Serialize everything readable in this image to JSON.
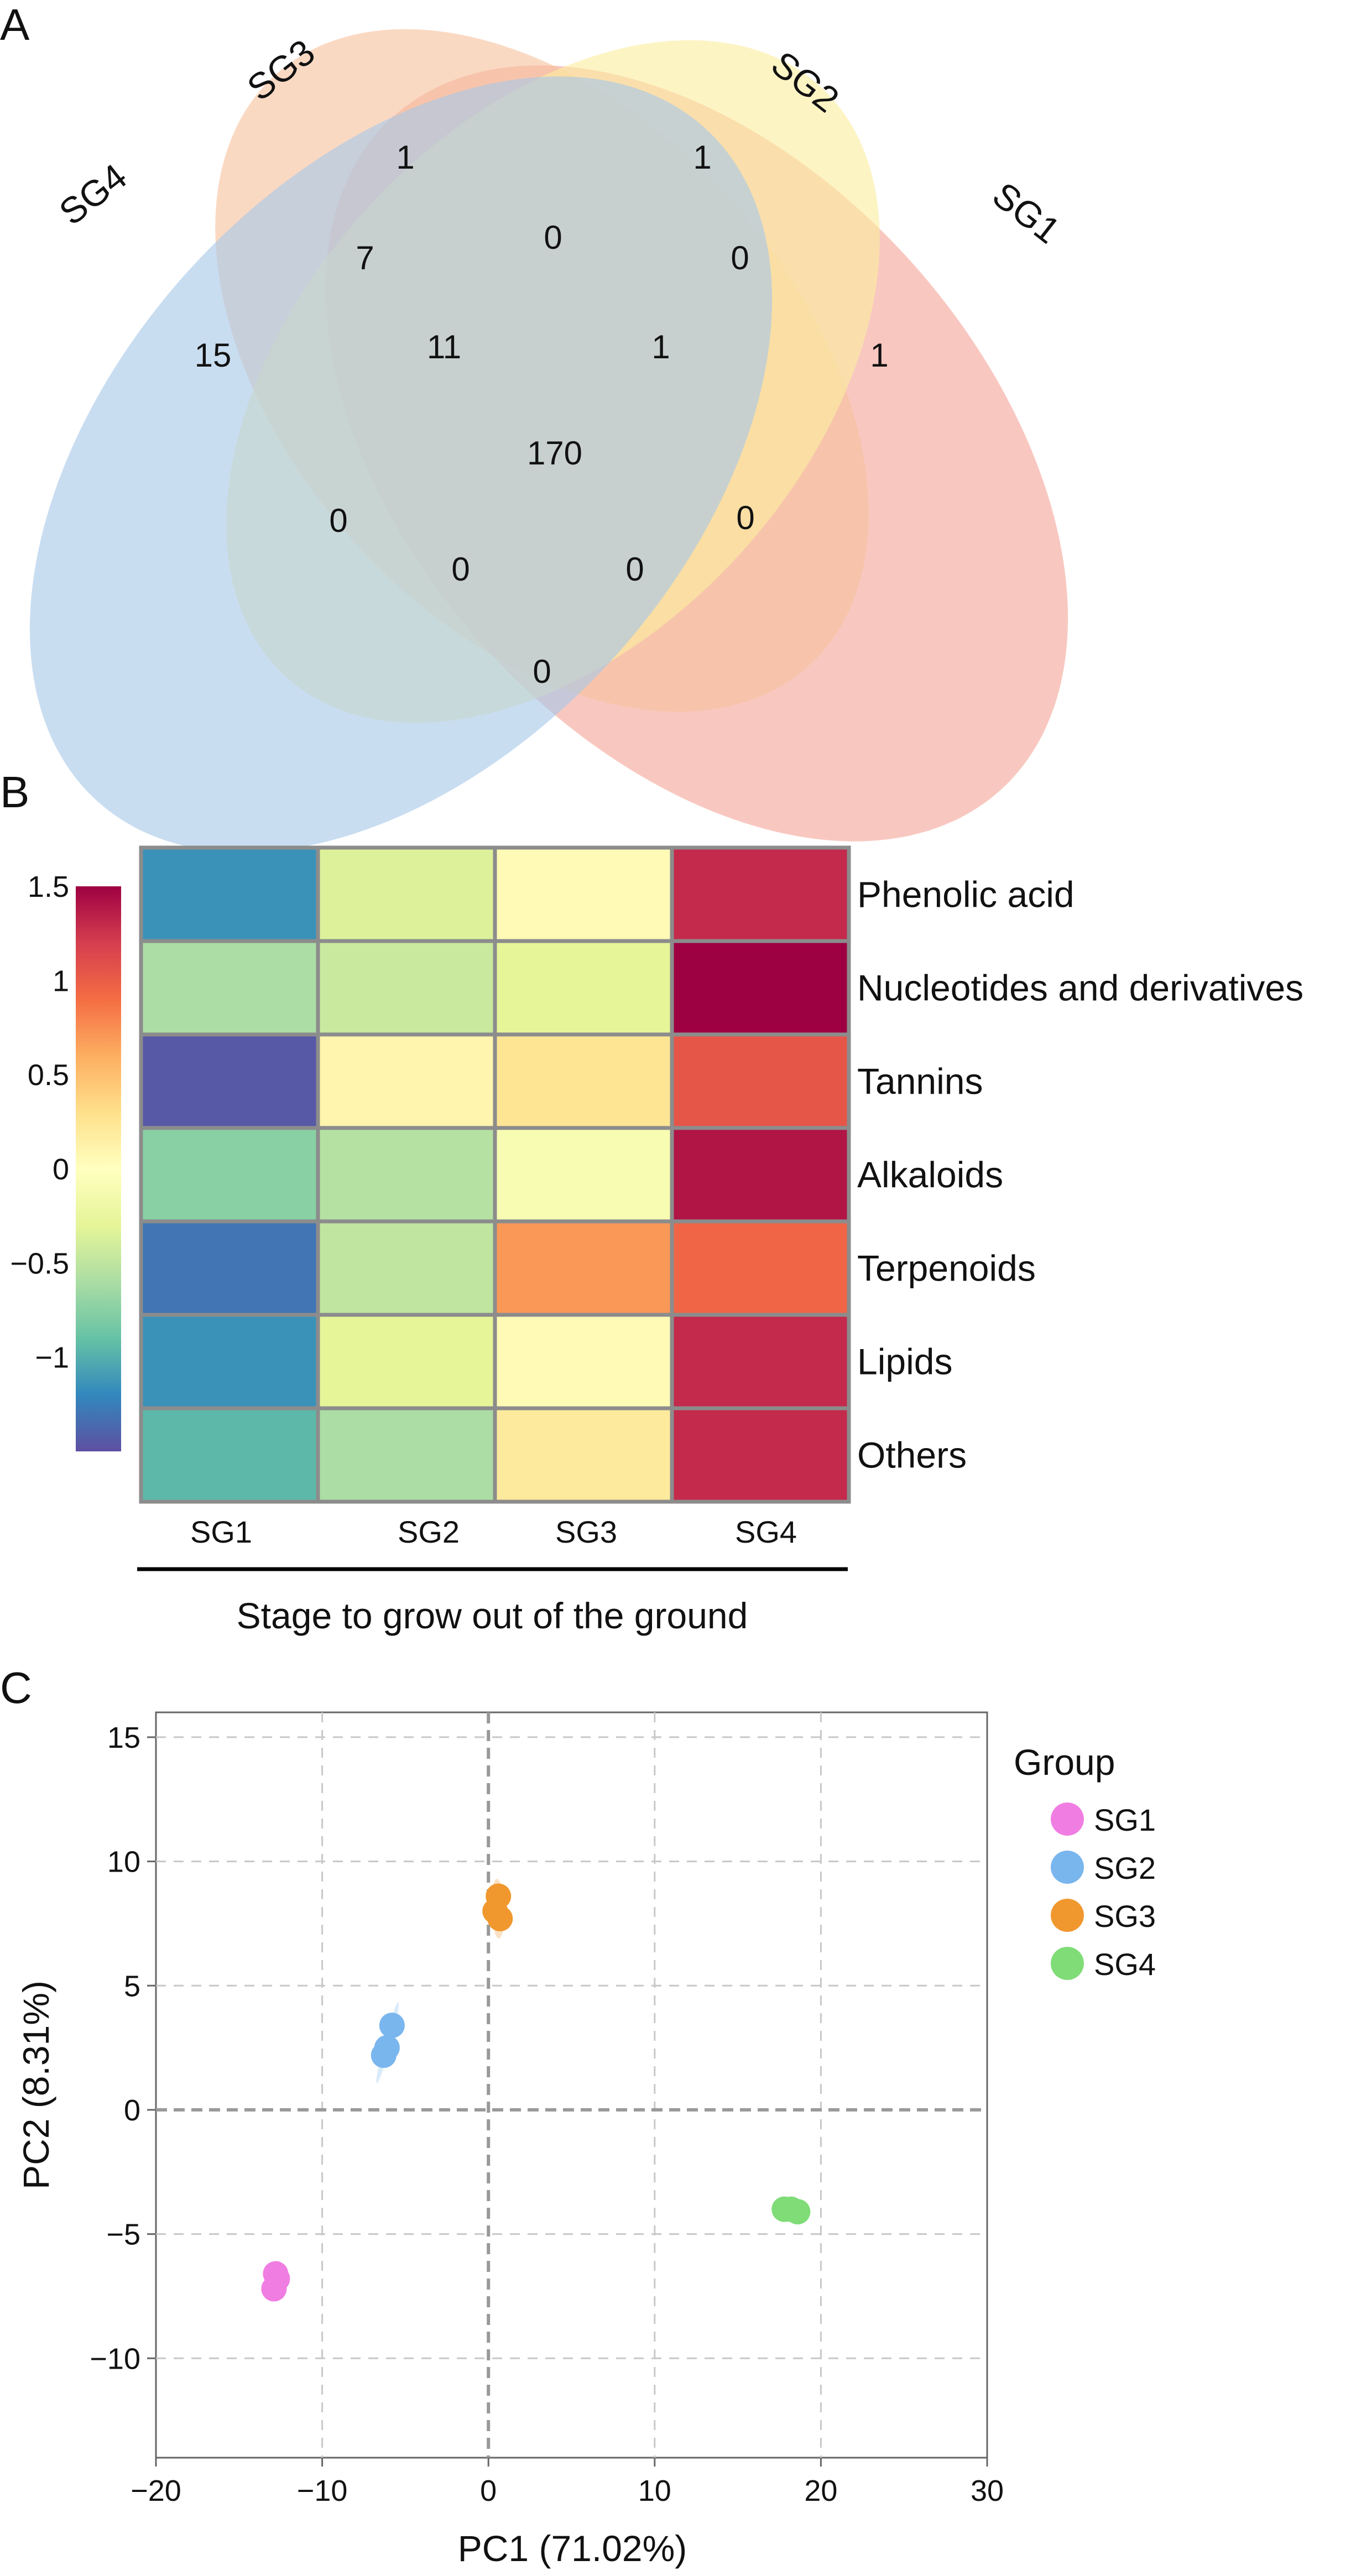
{
  "chart_data": [
    {
      "panel": "A",
      "type": "venn",
      "sets": [
        "SG1",
        "SG2",
        "SG3",
        "SG4"
      ],
      "set_colors": {
        "SG1": "#f4a79a",
        "SG2": "#f7c29e",
        "SG3": "#fbeda0",
        "SG4": "#a8c8e8"
      },
      "regions": [
        {
          "sets": [
            "SG3"
          ],
          "value": "1"
        },
        {
          "sets": [
            "SG2"
          ],
          "value": "1"
        },
        {
          "sets": [
            "SG3",
            "SG4"
          ],
          "value": "7"
        },
        {
          "sets": [
            "SG2",
            "SG3"
          ],
          "value": "0"
        },
        {
          "sets": [
            "SG1",
            "SG2"
          ],
          "value": "0"
        },
        {
          "sets": [
            "SG4"
          ],
          "value": "15"
        },
        {
          "sets": [
            "SG2",
            "SG3",
            "SG4"
          ],
          "value": "11"
        },
        {
          "sets": [
            "SG1",
            "SG2",
            "SG3"
          ],
          "value": "1"
        },
        {
          "sets": [
            "SG1"
          ],
          "value": "1"
        },
        {
          "sets": [
            "SG1",
            "SG2",
            "SG3",
            "SG4"
          ],
          "value": "170"
        },
        {
          "sets": [
            "SG2",
            "SG4"
          ],
          "value": "0"
        },
        {
          "sets": [
            "SG1",
            "SG3"
          ],
          "value": "0"
        },
        {
          "sets": [
            "SG1",
            "SG2",
            "SG4"
          ],
          "value": "0"
        },
        {
          "sets": [
            "SG1",
            "SG3",
            "SG4"
          ],
          "value": "0"
        },
        {
          "sets": [
            "SG1",
            "SG4"
          ],
          "value": "0"
        }
      ]
    },
    {
      "panel": "B",
      "type": "heatmap",
      "rows": [
        "Phenolic acid",
        "Nucleotides and derivatives",
        "Tannins",
        "Alkaloids",
        "Terpenoids",
        "Lipids",
        "Others"
      ],
      "columns": [
        "SG1",
        "SG2",
        "SG3",
        "SG4"
      ],
      "values": [
        [
          -1.15,
          -0.35,
          0.05,
          1.3
        ],
        [
          -0.6,
          -0.45,
          -0.3,
          1.5
        ],
        [
          -1.45,
          0.1,
          0.25,
          1.05
        ],
        [
          -0.75,
          -0.55,
          -0.1,
          1.4
        ],
        [
          -1.3,
          -0.5,
          0.7,
          0.95
        ],
        [
          -1.15,
          -0.3,
          0.05,
          1.3
        ],
        [
          -0.95,
          -0.6,
          0.2,
          1.3
        ]
      ],
      "colorbar_ticks": [
        "1.5",
        "1",
        "0.5",
        "0",
        "−0.5",
        "−1"
      ],
      "colorbar_range": [
        -1.5,
        1.5
      ],
      "xlabel": "Stage to grow out of the ground"
    },
    {
      "panel": "C",
      "type": "scatter",
      "xlabel": "PC1 (71.02%)",
      "ylabel": "PC2 (8.31%)",
      "xlim": [
        -20,
        30
      ],
      "ylim": [
        -14,
        16
      ],
      "x_ticks": [
        "−20",
        "−10",
        "0",
        "10",
        "20",
        "30"
      ],
      "y_ticks": [
        "15",
        "10",
        "5",
        "0",
        "−5",
        "−10"
      ],
      "legend_title": "Group",
      "legend_position": "right",
      "series": [
        {
          "name": "SG1",
          "color": "#f07ee2",
          "points": [
            [
              -12.8,
              -6.6
            ],
            [
              -12.9,
              -7.2
            ],
            [
              -12.7,
              -6.8
            ]
          ]
        },
        {
          "name": "SG2",
          "color": "#7ab6ee",
          "points": [
            [
              -5.8,
              3.4
            ],
            [
              -6.3,
              2.2
            ],
            [
              -6.1,
              2.5
            ]
          ]
        },
        {
          "name": "SG3",
          "color": "#f0982e",
          "points": [
            [
              0.6,
              8.6
            ],
            [
              0.4,
              8.0
            ],
            [
              0.7,
              7.7
            ]
          ]
        },
        {
          "name": "SG4",
          "color": "#7fdc77",
          "points": [
            [
              17.8,
              -4.0
            ],
            [
              18.6,
              -4.1
            ],
            [
              18.2,
              -4.0
            ]
          ]
        }
      ]
    }
  ],
  "panels": {
    "a": "A",
    "b": "B",
    "c": "C"
  }
}
